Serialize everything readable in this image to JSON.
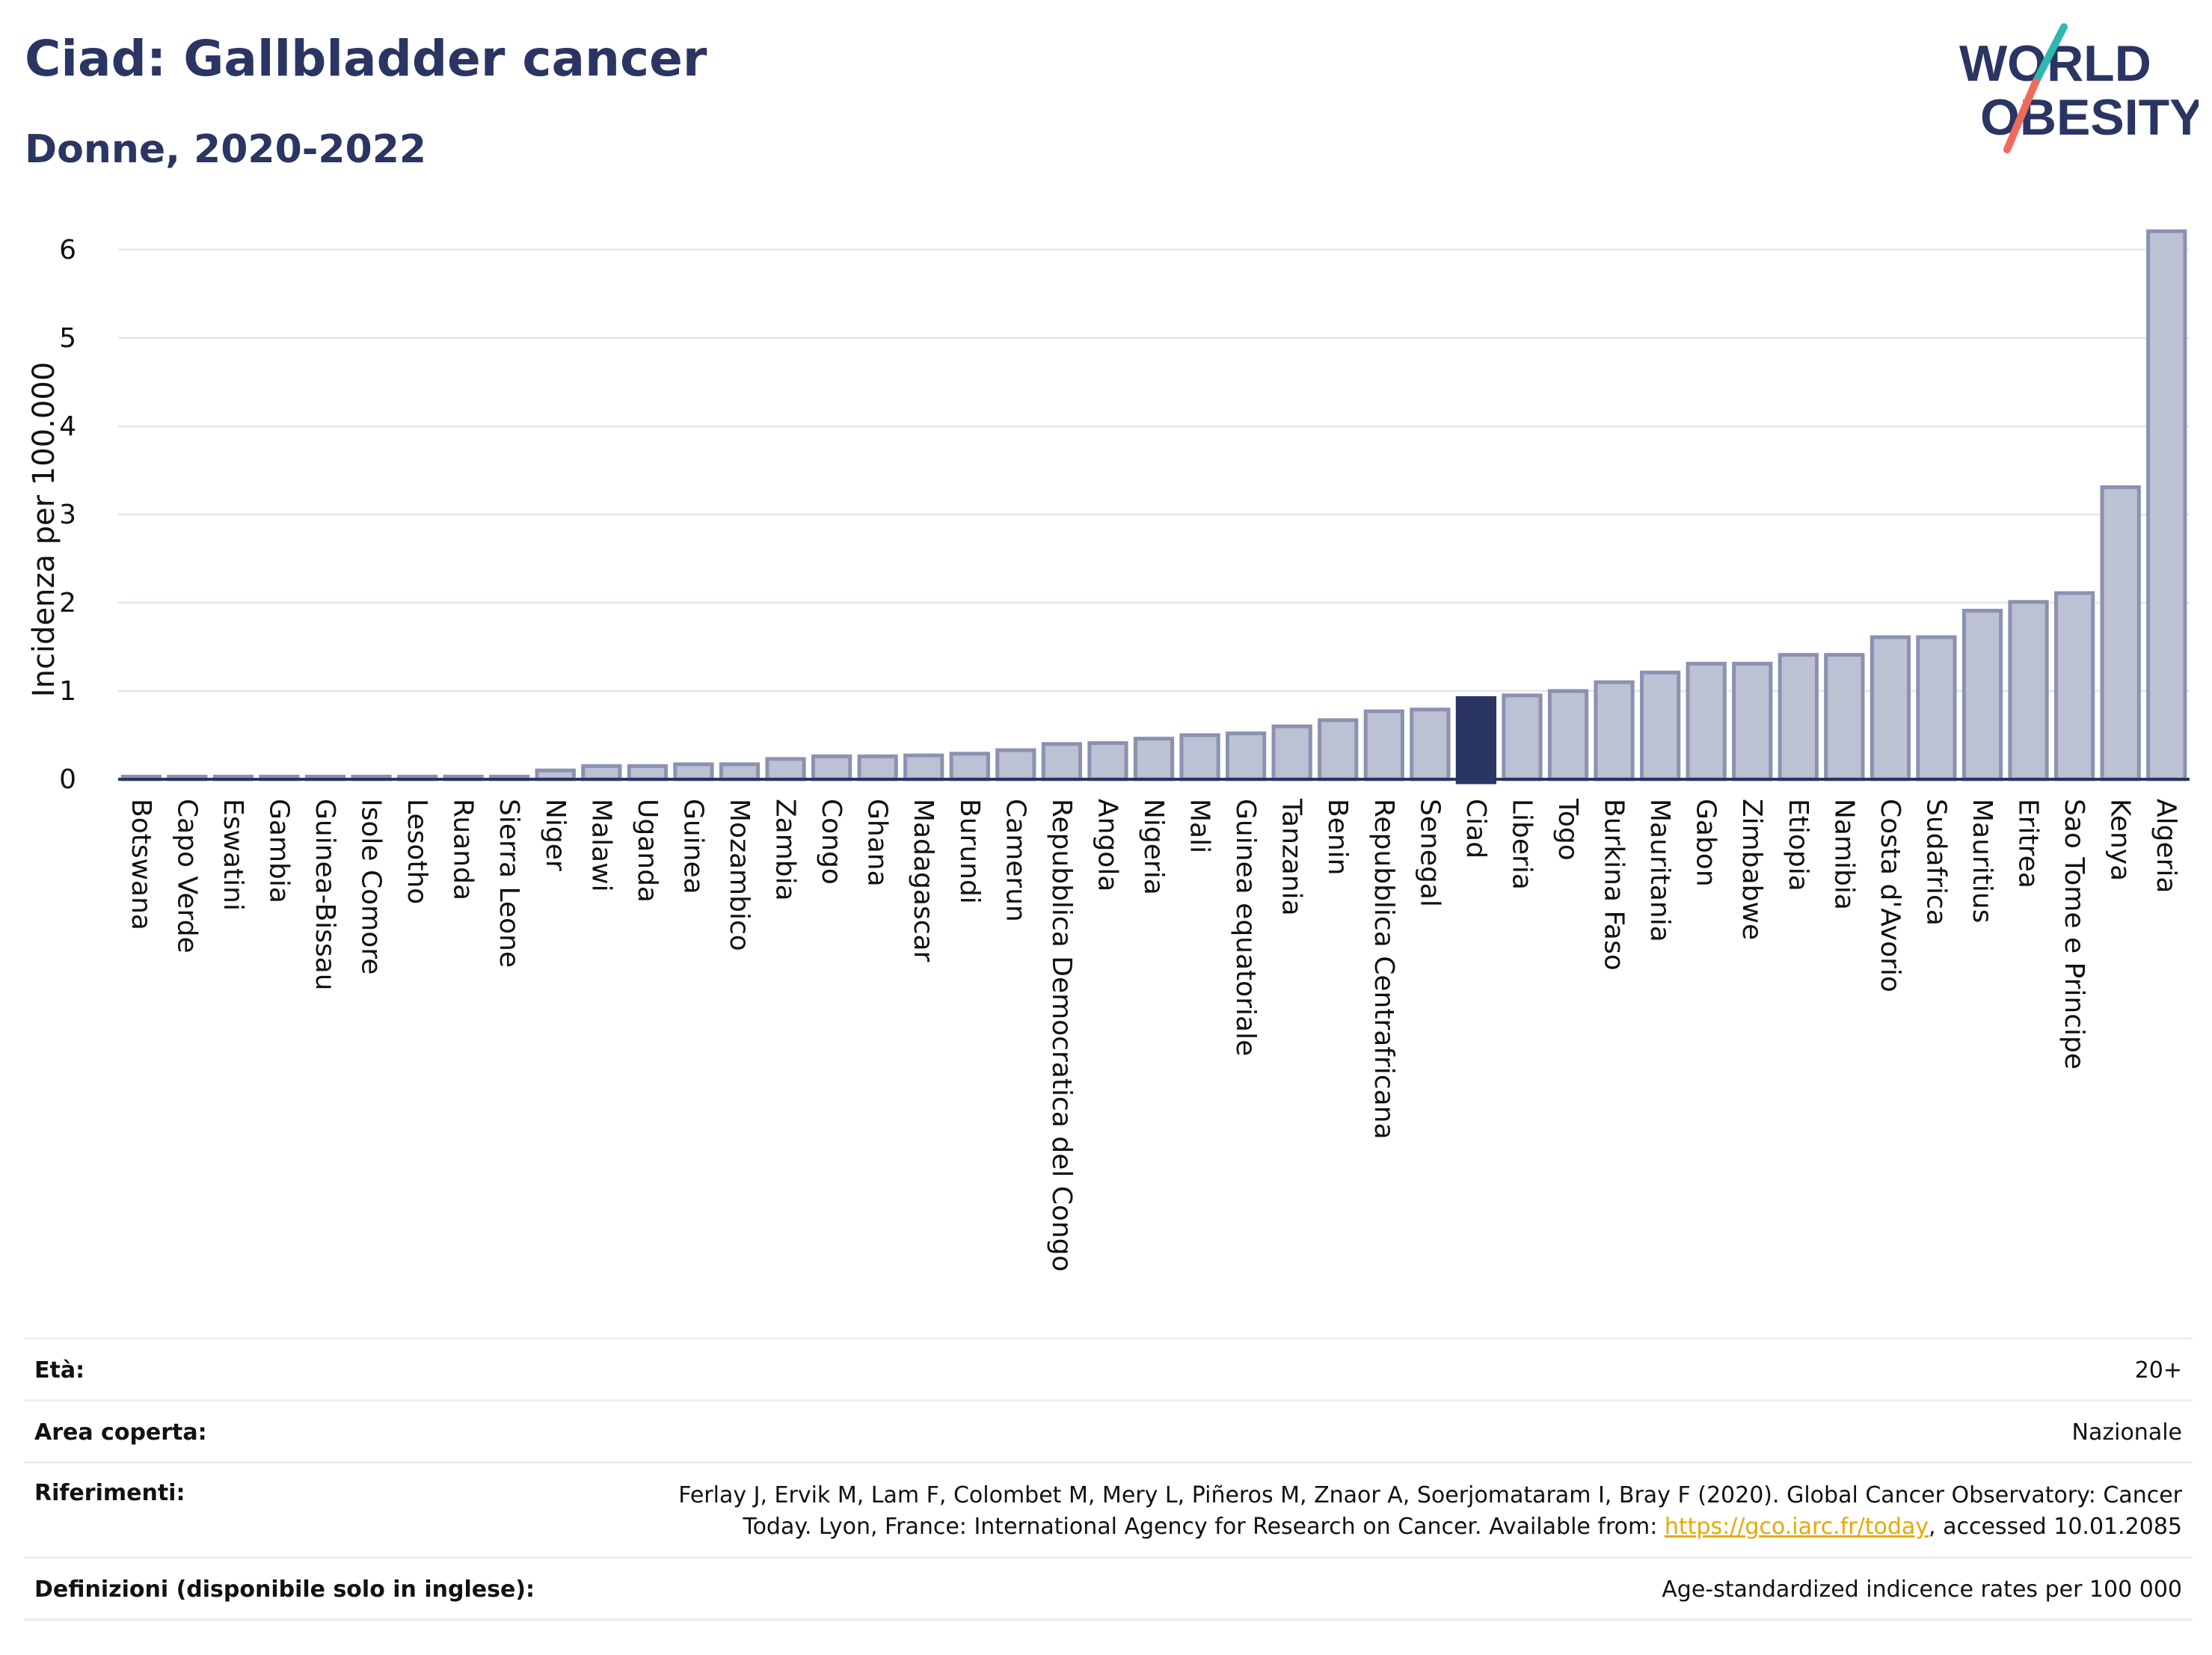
{
  "header": {
    "title": "Ciad: Gallbladder cancer",
    "subtitle": "Donne, 2020-2022"
  },
  "logo": {
    "line1": "WORLD",
    "line2": "OBESITY"
  },
  "colors": {
    "highlight": "#2a3563",
    "bar_fill": "#bcc1d3",
    "bar_stroke": "#8a92b0",
    "accent_teal": "#2fb8b0",
    "accent_coral": "#ef6a5a",
    "link": "#e8a800"
  },
  "chart_data": {
    "type": "bar",
    "ylabel": "Incidenza per 100.000",
    "ylim": [
      0,
      6.3
    ],
    "yticks": [
      0,
      1,
      2,
      3,
      4,
      5,
      6
    ],
    "grid": true,
    "highlight": "Ciad",
    "categories": [
      "Botswana",
      "Capo Verde",
      "Eswatini",
      "Gambia",
      "Guinea-Bissau",
      "Isole Comore",
      "Lesotho",
      "Ruanda",
      "Sierra Leone",
      "Niger",
      "Malawi",
      "Uganda",
      "Guinea",
      "Mozambico",
      "Zambia",
      "Congo",
      "Ghana",
      "Madagascar",
      "Burundi",
      "Camerun",
      "Repubblica Democratica del Congo",
      "Angola",
      "Nigeria",
      "Mali",
      "Guinea equatoriale",
      "Tanzania",
      "Benin",
      "Repubblica Centrafricana",
      "Senegal",
      "Ciad",
      "Liberia",
      "Togo",
      "Burkina Faso",
      "Mauritania",
      "Gabon",
      "Zimbabwe",
      "Etiopia",
      "Namibia",
      "Costa d'Avorio",
      "Sudafrica",
      "Mauritius",
      "Eritrea",
      "Sao Tome e Principe",
      "Kenya",
      "Algeria"
    ],
    "values": [
      0.03,
      0.03,
      0.03,
      0.03,
      0.03,
      0.03,
      0.03,
      0.03,
      0.03,
      0.1,
      0.15,
      0.15,
      0.17,
      0.17,
      0.23,
      0.26,
      0.26,
      0.27,
      0.29,
      0.33,
      0.4,
      0.41,
      0.46,
      0.5,
      0.52,
      0.6,
      0.67,
      0.77,
      0.79,
      0.92,
      0.95,
      1.0,
      1.1,
      1.21,
      1.31,
      1.31,
      1.41,
      1.41,
      1.61,
      1.61,
      1.91,
      2.01,
      2.11,
      3.31,
      6.21
    ]
  },
  "info": {
    "age_label": "Età:",
    "age_value": "20+",
    "area_label": "Area coperta:",
    "area_value": "Nazionale",
    "refs_label": "Riferimenti:",
    "refs_line1": "Ferlay J, Ervik M, Lam F, Colombet M, Mery L, Piñeros M, Znaor A, Soerjomataram I, Bray F (2020). Global Cancer Observatory: Cancer",
    "refs_line2_pre": "Today. Lyon, France: International Agency for Research on Cancer. Available from: ",
    "refs_link": "https://gco.iarc.fr/today",
    "refs_line2_post": ", accessed 10.01.2085",
    "defs_label": "Definizioni (disponibile solo in inglese):",
    "defs_value": "Age-standardized indicence rates per 100 000"
  }
}
